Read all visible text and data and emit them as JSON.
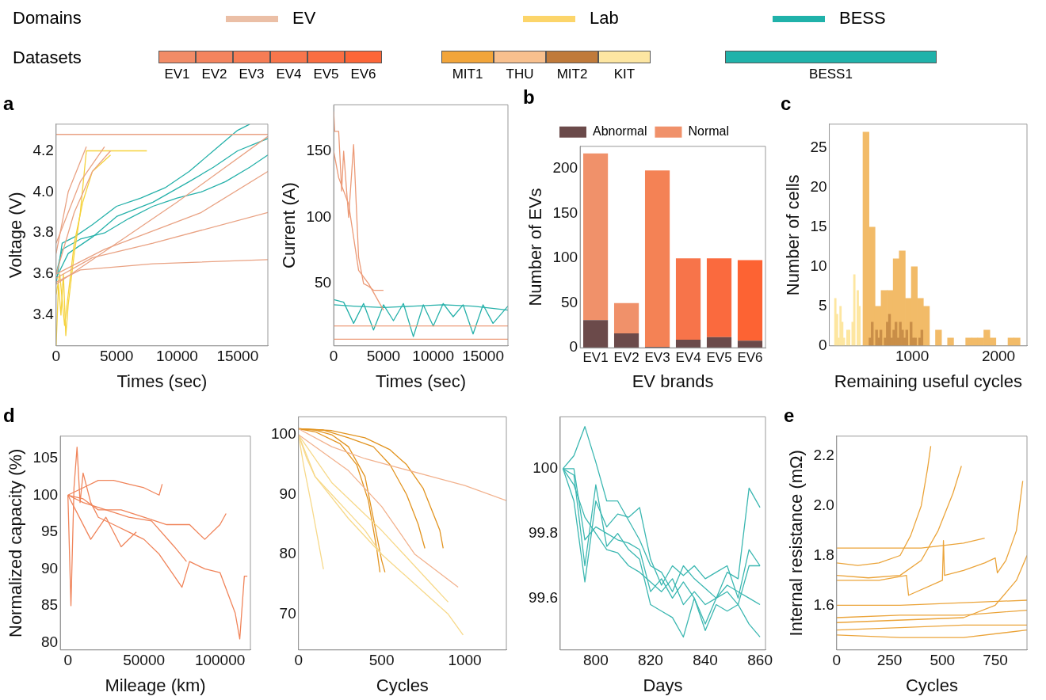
{
  "chart_data": [
    {
      "type": "other",
      "title": "Domains",
      "categories": [
        "EV",
        "Lab",
        "BESS"
      ],
      "colors": [
        "#ebbfa6",
        "#fcd56a",
        "#20b2aa"
      ]
    },
    {
      "type": "other",
      "title": "Datasets",
      "categories": [
        "EV1",
        "EV2",
        "EV3",
        "EV4",
        "EV5",
        "EV6",
        "MIT1",
        "THU",
        "MIT2",
        "KIT",
        "BESS1"
      ],
      "colors": [
        "#f28c67",
        "#f4845e",
        "#f67d55",
        "#f8764c",
        "#fa6e42",
        "#fc6638",
        "#f2a53a",
        "#f8c08e",
        "#c07a3a",
        "#fde6a2",
        "#20b2aa"
      ]
    },
    {
      "type": "line",
      "title": "a",
      "xlabel": "Times (sec)",
      "ylabel": "Voltage (V)",
      "xlim": [
        0,
        17500
      ],
      "xticks": [
        0,
        5000,
        10000,
        15000
      ],
      "ylim": [
        3.25,
        4.33
      ],
      "yticks": [
        3.4,
        3.6,
        3.8,
        {
          "value": 4,
          "label": "4.0"
        },
        4.2
      ],
      "grid": false,
      "series": [
        {
          "color": "#e9a283",
          "x": [
            0,
            17500
          ],
          "values": [
            4.28,
            4.28
          ]
        },
        {
          "color": "#e9a283",
          "x": [
            0,
            2000,
            4000
          ],
          "values": [
            3.75,
            4.05,
            4.22
          ]
        },
        {
          "color": "#e9a283",
          "x": [
            0,
            1500,
            3000,
            4500
          ],
          "values": [
            3.6,
            3.9,
            4.1,
            4.2
          ]
        },
        {
          "color": "#e9a283",
          "x": [
            0,
            5000,
            10000,
            17500
          ],
          "values": [
            3.55,
            3.75,
            3.95,
            4.27
          ]
        },
        {
          "color": "#e9a283",
          "x": [
            0,
            3000,
            8000,
            17500
          ],
          "values": [
            3.58,
            3.68,
            3.75,
            3.9
          ]
        },
        {
          "color": "#e9a283",
          "x": [
            0,
            2000,
            8000,
            17500
          ],
          "values": [
            3.56,
            3.62,
            3.65,
            3.67
          ]
        },
        {
          "color": "#e9a283",
          "x": [
            0,
            4000,
            12000,
            17500
          ],
          "values": [
            3.6,
            3.72,
            3.9,
            4.1
          ]
        },
        {
          "color": "#e9a283",
          "x": [
            0,
            1000,
            2500
          ],
          "values": [
            3.7,
            4.0,
            4.22
          ]
        },
        {
          "color": "#f5d23c",
          "x": [
            0,
            200,
            400,
            600,
            800,
            1000,
            1200,
            1500,
            2000,
            2500,
            4000,
            7500
          ],
          "values": [
            3.25,
            3.55,
            3.4,
            3.6,
            3.3,
            3.45,
            3.55,
            3.7,
            3.9,
            4.2,
            4.2,
            4.2
          ]
        },
        {
          "color": "#f5d23c",
          "x": [
            0,
            300,
            700,
            1000,
            1500,
            2200,
            3000,
            4500
          ],
          "values": [
            3.5,
            3.6,
            3.35,
            3.5,
            3.75,
            3.95,
            4.1,
            4.18
          ]
        },
        {
          "color": "#26b1aa",
          "x": [
            0,
            500,
            1500,
            3000,
            5000,
            7000,
            9000,
            11000,
            13000,
            15000,
            16000
          ],
          "values": [
            3.55,
            3.75,
            3.78,
            3.84,
            3.93,
            3.97,
            4.02,
            4.1,
            4.2,
            4.3,
            4.33
          ]
        },
        {
          "color": "#26b1aa",
          "x": [
            0,
            500,
            2000,
            4000,
            6000,
            8000,
            10000,
            12000,
            14000,
            16000,
            17500
          ],
          "values": [
            3.6,
            3.72,
            3.77,
            3.8,
            3.87,
            3.93,
            3.97,
            4.0,
            4.05,
            4.12,
            4.18
          ]
        },
        {
          "color": "#26b1aa",
          "x": [
            0,
            1000,
            3000,
            5000,
            8000,
            11000,
            13000,
            15000,
            17500
          ],
          "values": [
            3.58,
            3.7,
            3.78,
            3.88,
            3.95,
            4.05,
            4.12,
            4.2,
            4.26
          ]
        }
      ]
    },
    {
      "type": "line",
      "xlabel": "Times (sec)",
      "ylabel": "Current (A)",
      "xlim": [
        0,
        17500
      ],
      "xticks": [
        0,
        5000,
        10000,
        15000
      ],
      "ylim": [
        3,
        185
      ],
      "yticks": [
        50,
        100,
        150
      ],
      "grid": false,
      "series": [
        {
          "color": "#ec9a77",
          "x": [
            0,
            100,
            500,
            800,
            1000,
            1500,
            2000,
            2500,
            3000,
            3500,
            4000,
            5000
          ],
          "values": [
            180,
            165,
            165,
            120,
            150,
            100,
            155,
            70,
            50,
            48,
            45,
            45
          ]
        },
        {
          "color": "#ec9a77",
          "x": [
            0,
            500,
            1500,
            2500,
            3500,
            5000
          ],
          "values": [
            150,
            130,
            110,
            60,
            50,
            30
          ]
        },
        {
          "color": "#ec9a77",
          "x": [
            0,
            17500
          ],
          "values": [
            18,
            18
          ]
        },
        {
          "color": "#ec9a77",
          "x": [
            0,
            17500
          ],
          "values": [
            8,
            8
          ]
        },
        {
          "color": "#26b1aa",
          "x": [
            0,
            1000,
            2000,
            3000,
            4000,
            5000,
            6000,
            7000,
            8000,
            9000,
            10000,
            11000,
            12000,
            13000,
            14000,
            15000,
            16000,
            17500
          ],
          "values": [
            38,
            36,
            20,
            35,
            15,
            34,
            22,
            35,
            10,
            34,
            18,
            35,
            25,
            34,
            12,
            34,
            20,
            33
          ]
        },
        {
          "color": "#26b1aa",
          "x": [
            0,
            2000,
            5000,
            8000,
            11000,
            14000,
            17500
          ],
          "values": [
            34,
            33,
            32,
            33,
            34,
            33,
            30
          ]
        }
      ]
    },
    {
      "type": "bar",
      "title": "b",
      "xlabel": "EV brands",
      "ylabel": "Number of EVs",
      "categories": [
        "EV1",
        "EV2",
        "EV3",
        "EV4",
        "EV5",
        "EV6"
      ],
      "stacked": true,
      "legend": "top",
      "grid": false,
      "ylim": [
        0,
        225
      ],
      "yticks": [
        0,
        50,
        100,
        150,
        200
      ],
      "series": [
        {
          "name": "Abnormal",
          "color": "#6b4a4a",
          "values": [
            31,
            16,
            1,
            9,
            12,
            8
          ]
        },
        {
          "name": "Normal",
          "color": "#f0916a",
          "colors": [
            "#f0916a",
            "#f0916a",
            "#f48255",
            "#f7744a",
            "#fa6a3e",
            "#fd6333"
          ],
          "values": [
            186,
            34,
            197,
            91,
            88,
            90
          ]
        }
      ]
    },
    {
      "type": "histogram",
      "title": "c",
      "xlabel": "Remaining useful cycles",
      "ylabel": "Number of cells",
      "xlim": [
        40,
        2330
      ],
      "xticks": [
        1000,
        2000
      ],
      "ylim": [
        0,
        28
      ],
      "yticks": [
        0,
        5,
        10,
        15,
        20,
        25
      ],
      "grid": false,
      "bins": [
        430,
        500,
        570,
        640,
        710,
        780,
        850,
        920,
        990,
        1060,
        1130,
        1200,
        1270,
        1340,
        1410,
        1480,
        1550,
        1620,
        1690,
        1760,
        1830,
        1900,
        1970,
        2040,
        2110,
        2180,
        2250
      ],
      "series": [
        {
          "color": "#fde6a0",
          "bins": [
            100,
            120,
            140,
            160,
            180,
            200,
            220,
            240,
            260,
            280,
            300,
            320,
            340,
            360,
            380,
            400,
            420,
            440
          ],
          "values": [
            6,
            4,
            1,
            5,
            3,
            1,
            0,
            2,
            2,
            0,
            3,
            9,
            0,
            7,
            5,
            0,
            null
          ]
        },
        {
          "color": "#f2bb68",
          "values": [
            27,
            15,
            5,
            7,
            7,
            11,
            12,
            6,
            10,
            6,
            5,
            0,
            2,
            0,
            1,
            0,
            0,
            1,
            1,
            1,
            2,
            1,
            0,
            0,
            1,
            1
          ]
        },
        {
          "color": "#c98e48",
          "bins": [
            500,
            525,
            550,
            575,
            600,
            625,
            650,
            675,
            700,
            725,
            750,
            775,
            800,
            825,
            850,
            875,
            900,
            925,
            950,
            975,
            1000,
            1025,
            1050,
            1075,
            1100,
            1125,
            1150
          ],
          "values": [
            1,
            3,
            0,
            2,
            1,
            2,
            0,
            1,
            3,
            4,
            1,
            2,
            3,
            1,
            3,
            2,
            1,
            2,
            0,
            3,
            1,
            1,
            0,
            1,
            2,
            0
          ]
        }
      ]
    },
    {
      "type": "line",
      "title": "d",
      "xlabel": "Mileage (km)",
      "ylabel": "Normalized capacity (%)",
      "xlim": [
        -5000,
        120000
      ],
      "xticks": [
        0,
        50000,
        100000
      ],
      "ylim": [
        79,
        108
      ],
      "yticks": [
        80,
        85,
        90,
        95,
        100,
        105
      ],
      "grid": false,
      "series": [
        {
          "color": "#f0845a",
          "x": [
            0,
            2000,
            4000,
            6000,
            8000,
            10000,
            15000,
            20000,
            30000,
            40000,
            50000,
            60000,
            70000,
            75000,
            80000,
            90000,
            100000,
            110000,
            113000,
            116000,
            118000
          ],
          "values": [
            100,
            85,
            101,
            106.5,
            99,
            103,
            99,
            97,
            96,
            95,
            94,
            92,
            89,
            87.5,
            91,
            90,
            89.5,
            84,
            80.5,
            89,
            89
          ]
        },
        {
          "color": "#f0845a",
          "x": [
            0,
            10000,
            20000,
            30000,
            40000,
            50000,
            60000,
            62000
          ],
          "values": [
            100,
            101,
            102,
            102,
            101.5,
            101,
            100,
            101.5
          ]
        },
        {
          "color": "#f0845a",
          "x": [
            0,
            10000,
            20000,
            35000,
            50000,
            65000,
            80000,
            90000,
            100000,
            104000
          ],
          "values": [
            100,
            99.5,
            98,
            98,
            97,
            96,
            96,
            94,
            96,
            97.5
          ]
        },
        {
          "color": "#f0845a",
          "x": [
            0,
            10000,
            25000,
            40000,
            55000,
            70000,
            78000
          ],
          "values": [
            100,
            99,
            98,
            97,
            96.5,
            93,
            91
          ]
        },
        {
          "color": "#f0845a",
          "x": [
            0,
            5000,
            15000,
            25000,
            35000,
            45000
          ],
          "values": [
            100,
            98,
            94,
            97,
            93,
            95
          ]
        }
      ]
    },
    {
      "type": "line",
      "xlabel": "Cycles",
      "xlim": [
        0,
        1250
      ],
      "xticks": [
        0,
        500,
        1000
      ],
      "ylim": [
        64,
        103
      ],
      "yticks": [
        70,
        80,
        90,
        100
      ],
      "grid": false,
      "series": [
        {
          "color": "#f2b28e",
          "x": [
            0,
            200,
            400,
            600,
            800,
            1000,
            1250
          ],
          "values": [
            101,
            98,
            96,
            94.5,
            93,
            91.5,
            89
          ]
        },
        {
          "color": "#f2b28e",
          "x": [
            0,
            300,
            500,
            700,
            960
          ],
          "values": [
            100,
            94,
            88,
            80,
            74.5
          ]
        },
        {
          "color": "#f7d98a",
          "x": [
            0,
            50,
            100,
            200,
            300,
            400,
            500
          ],
          "values": [
            100,
            96,
            93,
            90,
            87,
            84,
            80
          ]
        },
        {
          "color": "#f7d98a",
          "x": [
            0,
            100,
            300,
            500,
            700,
            900,
            990
          ],
          "values": [
            100,
            93,
            86,
            80,
            75,
            70,
            66.5
          ]
        },
        {
          "color": "#f7d98a",
          "x": [
            0,
            30,
            80,
            150
          ],
          "values": [
            100,
            95,
            88,
            77.5
          ]
        },
        {
          "color": "#f7d98a",
          "x": [
            0,
            200,
            500,
            800,
            900
          ],
          "values": [
            100,
            92,
            84,
            75,
            72
          ]
        },
        {
          "color": "#e29420",
          "x": [
            0,
            100,
            200,
            300,
            400,
            450,
            500,
            520
          ],
          "values": [
            101,
            100.8,
            100,
            98,
            93,
            86,
            79,
            77
          ]
        },
        {
          "color": "#e29420",
          "x": [
            0,
            150,
            300,
            450,
            550,
            650,
            720,
            760
          ],
          "values": [
            101,
            100.8,
            99.5,
            98,
            95,
            90,
            85,
            81
          ]
        },
        {
          "color": "#e29420",
          "x": [
            0,
            200,
            400,
            550,
            650,
            750,
            850,
            870
          ],
          "values": [
            101,
            100.7,
            99.5,
            97.5,
            95,
            91,
            84,
            81
          ]
        },
        {
          "color": "#e29420",
          "x": [
            0,
            100,
            250,
            350,
            420,
            470,
            490
          ],
          "values": [
            101,
            100.5,
            98.5,
            95,
            89,
            81,
            77
          ]
        }
      ]
    },
    {
      "type": "line",
      "xlabel": "Days",
      "xlim": [
        787,
        862
      ],
      "xticks": [
        800,
        820,
        840,
        860
      ],
      "ylim": [
        99.44,
        100.16
      ],
      "yticks": [
        99.6,
        99.8,
        100
      ],
      "grid": false,
      "x": [
        788,
        792,
        796,
        800,
        804,
        808,
        812,
        816,
        820,
        824,
        828,
        832,
        836,
        840,
        844,
        848,
        852,
        856,
        860
      ],
      "series": [
        {
          "color": "#3bb7b1",
          "values": [
            100,
            100,
            99.78,
            99.82,
            99.8,
            99.78,
            99.77,
            99.75,
            99.62,
            99.66,
            99.6,
            99.65,
            99.6,
            99.52,
            99.6,
            99.62,
            99.58,
            99.7,
            99.7
          ]
        },
        {
          "color": "#3bb7b1",
          "values": [
            100,
            100.04,
            100.13,
            100.02,
            99.9,
            99.9,
            99.84,
            99.78,
            99.7,
            99.68,
            99.62,
            99.7,
            99.66,
            99.63,
            99.6,
            99.68,
            99.66,
            99.94,
            99.88
          ]
        },
        {
          "color": "#3bb7b1",
          "values": [
            100,
            99.98,
            99.7,
            99.95,
            99.76,
            99.8,
            99.75,
            99.72,
            99.58,
            99.56,
            99.54,
            99.48,
            99.6,
            99.5,
            99.58,
            99.56,
            99.58,
            99.52,
            99.48
          ]
        },
        {
          "color": "#3bb7b1",
          "values": [
            100,
            99.95,
            99.85,
            99.8,
            99.75,
            99.74,
            99.7,
            99.68,
            99.65,
            99.62,
            99.66,
            99.58,
            99.62,
            99.58,
            99.6,
            99.64,
            99.62,
            99.6,
            99.58
          ]
        },
        {
          "color": "#3bb7b1",
          "values": [
            100,
            99.9,
            99.65,
            99.9,
            99.82,
            99.86,
            99.85,
            99.88,
            99.72,
            99.64,
            99.7,
            99.67,
            99.7,
            99.66,
            99.68,
            99.7,
            99.6,
            99.75,
            99.7
          ]
        }
      ]
    },
    {
      "type": "line",
      "title": "e",
      "xlabel": "Cycles",
      "ylabel": "Internal resistance (mΩ)",
      "xlim": [
        0,
        900
      ],
      "xticks": [
        0,
        250,
        500,
        750
      ],
      "ylim": [
        1.42,
        2.28
      ],
      "yticks": [
        1.6,
        1.8,
        {
          "value": 2,
          "label": "2.0"
        },
        2.2
      ],
      "grid": false,
      "series": [
        {
          "color": "#eba43a",
          "x": [
            0,
            100,
            200,
            300,
            350,
            400,
            430,
            445
          ],
          "values": [
            1.77,
            1.76,
            1.77,
            1.8,
            1.88,
            2.0,
            2.15,
            2.24
          ]
        },
        {
          "color": "#eba43a",
          "x": [
            0,
            150,
            300,
            400,
            480,
            550,
            590
          ],
          "values": [
            1.72,
            1.71,
            1.72,
            1.78,
            1.9,
            2.05,
            2.16
          ]
        },
        {
          "color": "#eba43a",
          "x": [
            0,
            200,
            330,
            340,
            500,
            505,
            510,
            600,
            700,
            750,
            760,
            800,
            850,
            880
          ],
          "values": [
            1.7,
            1.7,
            1.72,
            1.64,
            1.7,
            1.86,
            1.72,
            1.74,
            1.77,
            1.79,
            1.73,
            1.78,
            1.9,
            2.1
          ]
        },
        {
          "color": "#eba43a",
          "x": [
            0,
            200,
            400,
            600,
            700
          ],
          "values": [
            1.83,
            1.83,
            1.83,
            1.85,
            1.87
          ]
        },
        {
          "color": "#eba43a",
          "x": [
            0,
            300,
            600,
            900
          ],
          "values": [
            1.6,
            1.6,
            1.61,
            1.62
          ]
        },
        {
          "color": "#eba43a",
          "x": [
            0,
            300,
            600,
            900
          ],
          "values": [
            1.55,
            1.56,
            1.56,
            1.58
          ]
        },
        {
          "color": "#eba43a",
          "x": [
            0,
            300,
            600,
            900
          ],
          "values": [
            1.5,
            1.51,
            1.52,
            1.52
          ]
        },
        {
          "color": "#eba43a",
          "x": [
            0,
            300,
            600,
            900
          ],
          "values": [
            1.48,
            1.47,
            1.47,
            1.5
          ]
        },
        {
          "color": "#eba43a",
          "x": [
            0,
            600,
            750,
            850,
            900
          ],
          "values": [
            1.53,
            1.55,
            1.6,
            1.7,
            1.8
          ]
        }
      ]
    }
  ]
}
